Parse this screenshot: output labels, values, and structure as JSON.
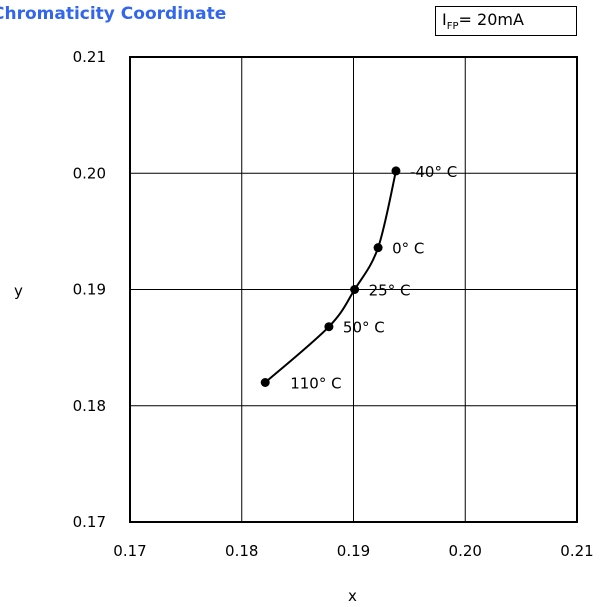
{
  "chart_data": {
    "type": "line",
    "title": "Chromaticity Coordinate",
    "condition": {
      "main": "I",
      "sub": "FP",
      "rest": "= 20mA"
    },
    "xlabel": "x",
    "ylabel": "y",
    "xlim": [
      0.17,
      0.21
    ],
    "ylim": [
      0.17,
      0.21
    ],
    "xticks": [
      "0.17",
      "0.18",
      "0.19",
      "0.20",
      "0.21"
    ],
    "yticks": [
      "0.17",
      "0.18",
      "0.19",
      "0.20",
      "0.21"
    ],
    "grid": true,
    "points": [
      {
        "x": 0.1938,
        "y": 0.2002,
        "label": "-40° C"
      },
      {
        "x": 0.1922,
        "y": 0.1936,
        "label": "0° C"
      },
      {
        "x": 0.1901,
        "y": 0.19,
        "label": "25° C"
      },
      {
        "x": 0.1878,
        "y": 0.1868,
        "label": "50° C"
      },
      {
        "x": 0.1821,
        "y": 0.182,
        "label": "110° C"
      }
    ]
  }
}
